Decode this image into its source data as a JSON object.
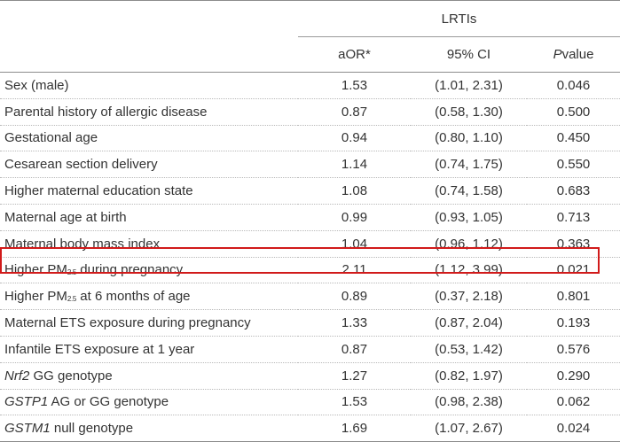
{
  "table": {
    "group_header": "LRTIs",
    "columns": {
      "aor": "aOR*",
      "ci": "95% CI",
      "p_italic": "P",
      "p_rest": "value"
    },
    "rows": [
      {
        "label": "Sex (male)",
        "aor": "1.53",
        "ci": "(1.01, 2.31)",
        "p": "0.046"
      },
      {
        "label": "Parental history of allergic disease",
        "aor": "0.87",
        "ci": "(0.58, 1.30)",
        "p": "0.500"
      },
      {
        "label": "Gestational age",
        "aor": "0.94",
        "ci": "(0.80, 1.10)",
        "p": "0.450"
      },
      {
        "label": "Cesarean section delivery",
        "aor": "1.14",
        "ci": "(0.74, 1.75)",
        "p": "0.550"
      },
      {
        "label": "Higher maternal education state",
        "aor": "1.08",
        "ci": "(0.74, 1.58)",
        "p": "0.683"
      },
      {
        "label": "Maternal age at birth",
        "aor": "0.99",
        "ci": "(0.93, 1.05)",
        "p": "0.713"
      },
      {
        "label": "Maternal body mass index",
        "aor": "1.04",
        "ci": "(0.96, 1.12)",
        "p": "0.363"
      },
      {
        "label_pre": "Higher PM",
        "label_sub": "2.5",
        "label_post": " during pregnancy",
        "aor": "2.11",
        "ci": "(1.12, 3.99)",
        "p": "0.021"
      },
      {
        "label_pre": "Higher PM",
        "label_sub": "2.5",
        "label_post": " at 6 months of age",
        "aor": "0.89",
        "ci": "(0.37, 2.18)",
        "p": "0.801"
      },
      {
        "label": "Maternal ETS exposure during pregnancy",
        "aor": "1.33",
        "ci": "(0.87, 2.04)",
        "p": "0.193"
      },
      {
        "label": "Infantile ETS exposure at 1 year",
        "aor": "0.87",
        "ci": "(0.53, 1.42)",
        "p": "0.576"
      },
      {
        "label_gene": "Nrf2",
        "label_post": " GG genotype",
        "aor": "1.27",
        "ci": "(0.82, 1.97)",
        "p": "0.290"
      },
      {
        "label_gene": "GSTP1",
        "label_post": " AG or GG genotype",
        "aor": "1.53",
        "ci": "(0.98, 2.38)",
        "p": "0.062"
      },
      {
        "label_gene": "GSTM1",
        "label_post": " null genotype",
        "aor": "1.69",
        "ci": "(1.07, 2.67)",
        "p": "0.024"
      }
    ],
    "highlight_color": "#d11a1a"
  }
}
